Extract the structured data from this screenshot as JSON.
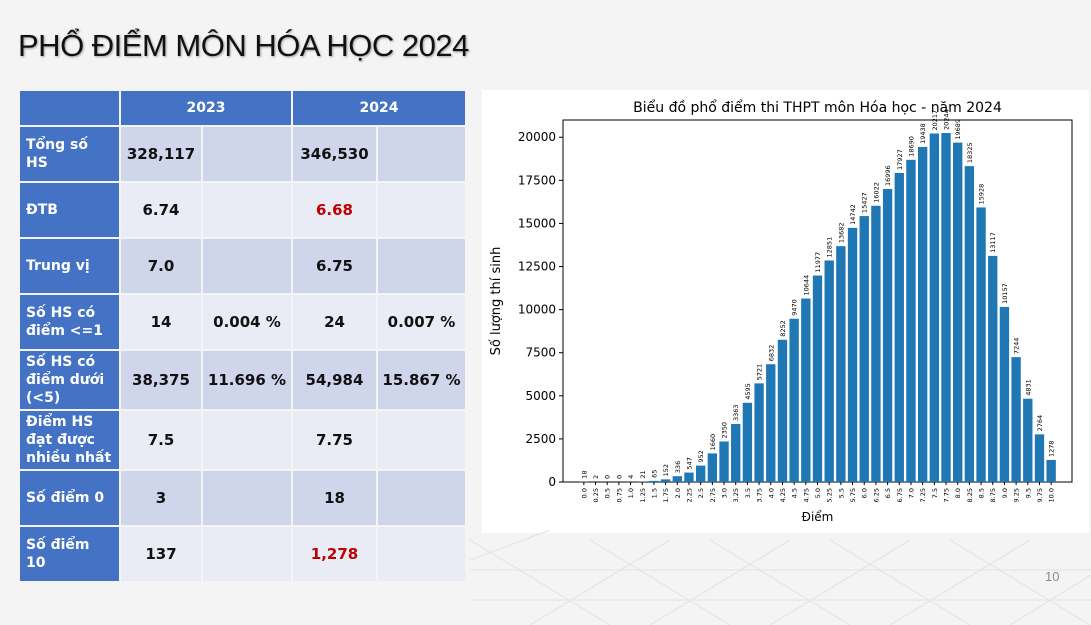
{
  "slide": {
    "title": "PHỔ ĐIỂM MÔN HÓA HỌC 2024",
    "page_number": "10"
  },
  "table": {
    "years": [
      "2023",
      "2024"
    ],
    "rows": [
      {
        "label": "Tổng số HS",
        "c2023": "328,117",
        "p2023": "",
        "c2024": "346,530",
        "p2024": "",
        "highlight": false
      },
      {
        "label": "ĐTB",
        "c2023": "6.74",
        "p2023": "",
        "c2024": "6.68",
        "p2024": "",
        "highlight": true
      },
      {
        "label": "Trung vị",
        "c2023": "7.0",
        "p2023": "",
        "c2024": "6.75",
        "p2024": "",
        "highlight": false
      },
      {
        "label": "Số HS có điểm <=1",
        "c2023": "14",
        "p2023": "0.004 %",
        "c2024": "24",
        "p2024": "0.007 %",
        "highlight": false
      },
      {
        "label": "Số HS có điểm dưới (<5)",
        "c2023": "38,375",
        "p2023": "11.696 %",
        "c2024": "54,984",
        "p2024": "15.867 %",
        "highlight": false
      },
      {
        "label": "Điểm HS đạt được nhiều nhất",
        "c2023": "7.5",
        "p2023": "",
        "c2024": "7.75",
        "p2024": "",
        "highlight": false
      },
      {
        "label": "Số điểm 0",
        "c2023": "3",
        "p2023": "",
        "c2024": "18",
        "p2024": "",
        "highlight": false
      },
      {
        "label": "Số điểm 10",
        "c2023": "137",
        "p2023": "",
        "c2024": "1,278",
        "p2024": "",
        "highlight": true
      }
    ]
  },
  "colors": {
    "header_blue": "#4472c4",
    "bar_blue": "#1f77b4",
    "highlight_red": "#c00000"
  },
  "chart_data": {
    "type": "bar",
    "title": "Biểu đồ phổ điểm thi THPT môn Hóa học - năm 2024",
    "xlabel": "Điểm",
    "ylabel": "Số lượng thí sinh",
    "ylim": [
      0,
      21000
    ],
    "yticks": [
      0,
      2500,
      5000,
      7500,
      10000,
      12500,
      15000,
      17500,
      20000
    ],
    "categories": [
      "0.0",
      "0.25",
      "0.5",
      "0.75",
      "1.0",
      "1.25",
      "1.5",
      "1.75",
      "2.0",
      "2.25",
      "2.5",
      "2.75",
      "3.0",
      "3.25",
      "3.5",
      "3.75",
      "4.0",
      "4.25",
      "4.5",
      "4.75",
      "5.0",
      "5.25",
      "5.5",
      "5.75",
      "6.0",
      "6.25",
      "6.5",
      "6.75",
      "7.0",
      "7.25",
      "7.5",
      "7.75",
      "8.0",
      "8.25",
      "8.5",
      "8.75",
      "9.0",
      "9.25",
      "9.5",
      "9.75",
      "10.0"
    ],
    "values": [
      18,
      2,
      0,
      0,
      4,
      21,
      65,
      152,
      336,
      547,
      952,
      1660,
      2350,
      3363,
      4595,
      5721,
      6832,
      8252,
      9470,
      10644,
      11977,
      12851,
      13682,
      14742,
      15427,
      16022,
      16996,
      17927,
      18690,
      19438,
      20217,
      20244,
      19689,
      18325,
      15928,
      13117,
      10157,
      7244,
      4831,
      2764,
      1278
    ]
  }
}
